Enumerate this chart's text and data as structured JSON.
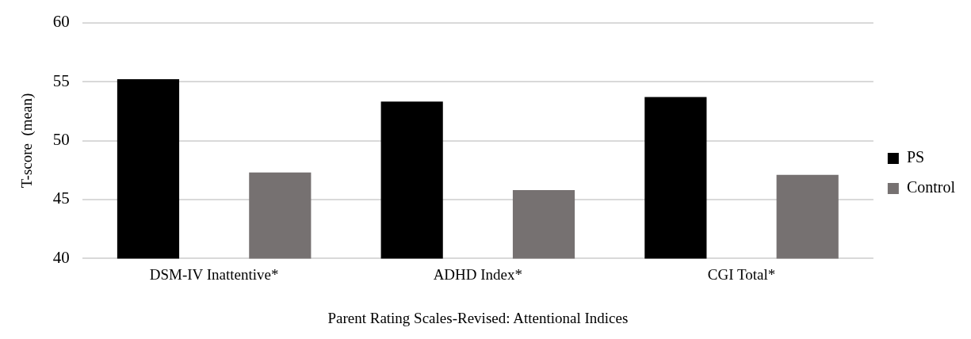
{
  "chart_data": {
    "type": "bar",
    "categories": [
      "DSM-IV Inattentive*",
      "ADHD Index*",
      "CGI Total*"
    ],
    "series": [
      {
        "name": "PS",
        "color": "#000000",
        "values": [
          55.2,
          53.3,
          53.7
        ]
      },
      {
        "name": "Control",
        "color": "#767171",
        "values": [
          47.3,
          45.8,
          47.1
        ]
      }
    ],
    "ylabel": "T-score  (mean)",
    "xlabel": "Parent Rating Scales-Revised: Attentional Indices",
    "ylim": [
      40,
      60
    ],
    "yticks": [
      40,
      45,
      50,
      55,
      60
    ],
    "grid": "y",
    "legend": "right"
  }
}
